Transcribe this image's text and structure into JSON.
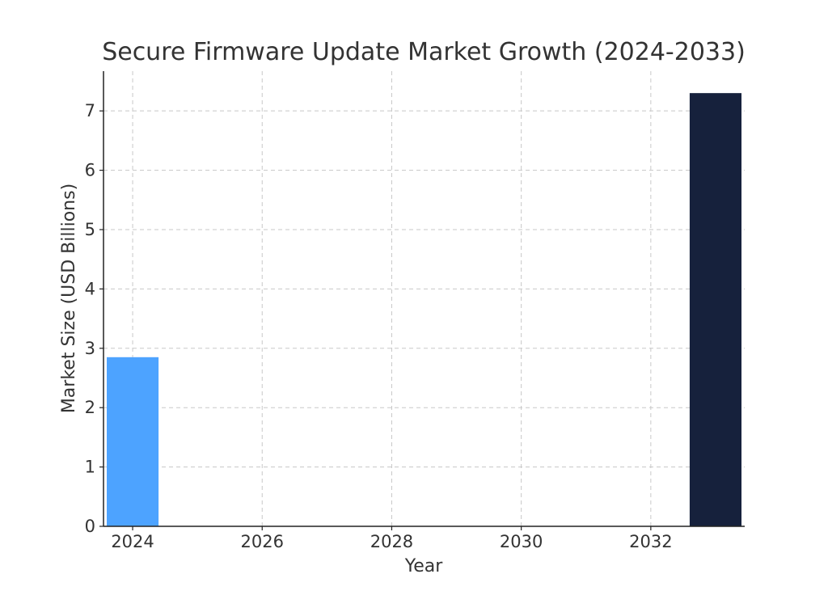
{
  "chart_data": {
    "type": "bar",
    "title": "Secure Firmware Update Market Growth (2024-2033)",
    "xlabel": "Year",
    "ylabel": "Market Size (USD Billions)",
    "x": [
      2024,
      2033
    ],
    "values": [
      2.85,
      7.3
    ],
    "bar_colors": [
      "#4da3ff",
      "#16213c"
    ],
    "xlim": [
      2023.55,
      2033.45
    ],
    "ylim": [
      0,
      7.67
    ],
    "xticks": [
      2024,
      2026,
      2028,
      2030,
      2032
    ],
    "yticks": [
      0,
      1,
      2,
      3,
      4,
      5,
      6,
      7
    ],
    "bar_width": 0.8,
    "grid": true,
    "legend": "none"
  }
}
